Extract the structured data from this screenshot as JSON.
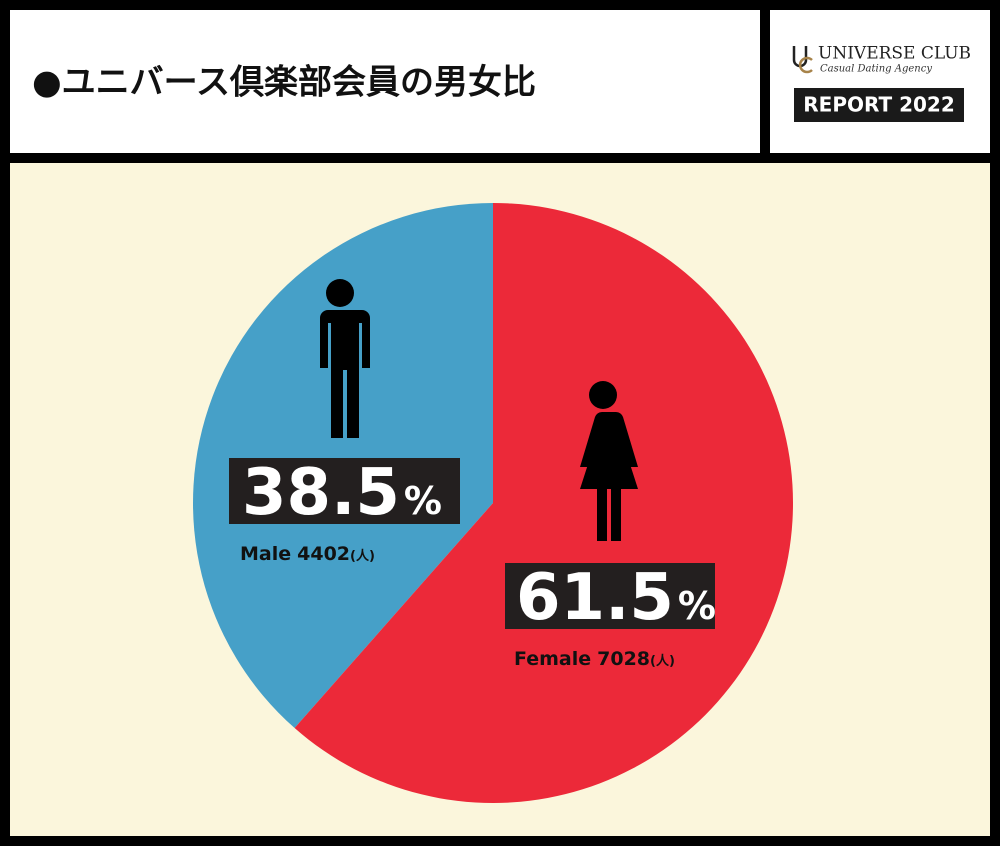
{
  "header": {
    "title": "●ユニバース倶楽部会員の男女比"
  },
  "logo": {
    "name": "UNIVERSE CLUB",
    "tagline": "Casual Dating Agency",
    "report": "REPORT 2022"
  },
  "chart_data": {
    "type": "pie",
    "categories": [
      "Male",
      "Female"
    ],
    "values": [
      38.5,
      61.5
    ],
    "unit": "%",
    "counts": [
      4402,
      7028
    ],
    "count_unit": "(人)",
    "series_colors": [
      "#46a0c8",
      "#ec2939"
    ]
  }
}
